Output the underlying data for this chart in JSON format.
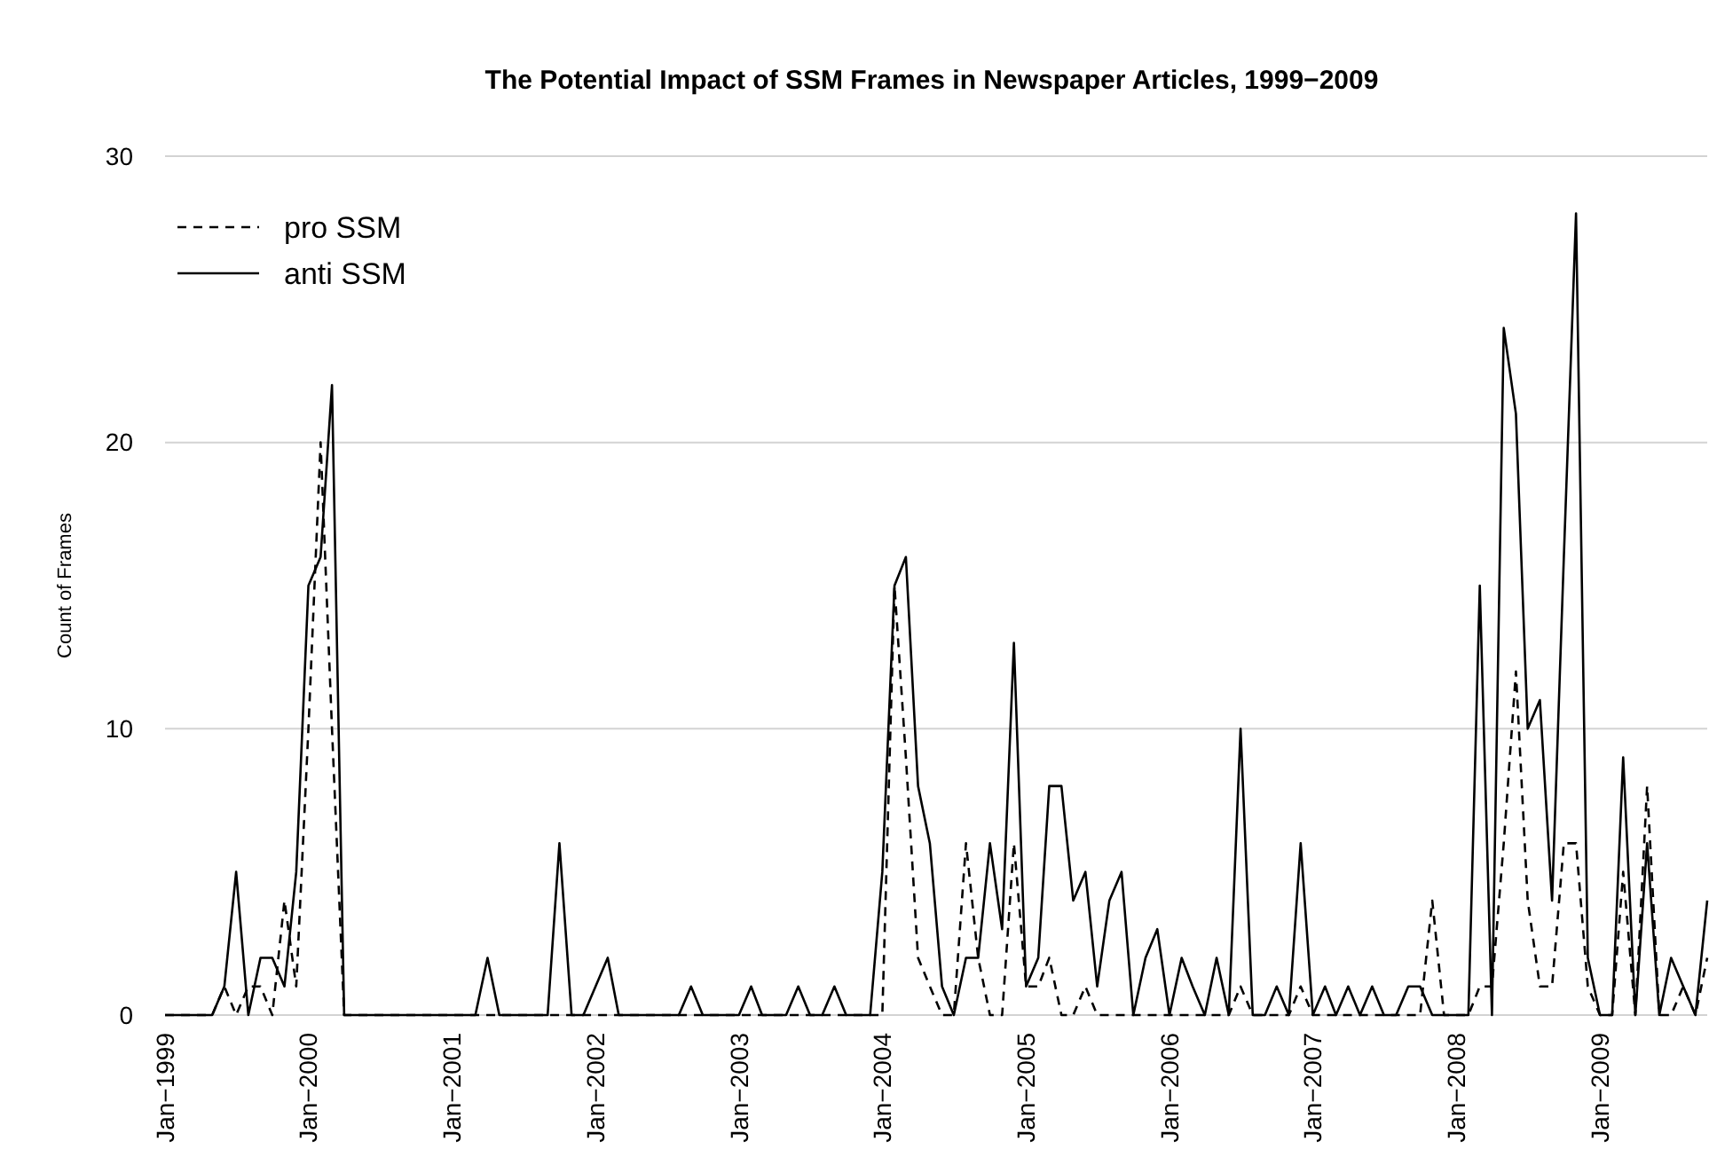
{
  "chart_data": {
    "type": "line",
    "title": "The Potential Impact of SSM Frames in Newspaper Articles, 1999−2009",
    "ylabel": "Count of Frames",
    "x": [
      "1999-01",
      "1999-02",
      "1999-03",
      "1999-04",
      "1999-05",
      "1999-06",
      "1999-07",
      "1999-08",
      "1999-09",
      "1999-10",
      "1999-11",
      "1999-12",
      "2000-01",
      "2000-02",
      "2000-03",
      "2000-04",
      "2000-05",
      "2000-06",
      "2000-07",
      "2000-08",
      "2000-09",
      "2000-10",
      "2000-11",
      "2000-12",
      "2001-01",
      "2001-02",
      "2001-03",
      "2001-04",
      "2001-05",
      "2001-06",
      "2001-07",
      "2001-08",
      "2001-09",
      "2001-10",
      "2001-11",
      "2001-12",
      "2002-01",
      "2002-02",
      "2002-03",
      "2002-04",
      "2002-05",
      "2002-06",
      "2002-07",
      "2002-08",
      "2002-09",
      "2002-10",
      "2002-11",
      "2002-12",
      "2003-01",
      "2003-02",
      "2003-03",
      "2003-04",
      "2003-05",
      "2003-06",
      "2003-07",
      "2003-08",
      "2003-09",
      "2003-10",
      "2003-11",
      "2003-12",
      "2004-01",
      "2004-02",
      "2004-03",
      "2004-04",
      "2004-05",
      "2004-06",
      "2004-07",
      "2004-08",
      "2004-09",
      "2004-10",
      "2004-11",
      "2004-12",
      "2005-01",
      "2005-02",
      "2005-03",
      "2005-04",
      "2005-05",
      "2005-06",
      "2005-07",
      "2005-08",
      "2005-09",
      "2005-10",
      "2005-11",
      "2005-12",
      "2006-01",
      "2006-02",
      "2006-03",
      "2006-04",
      "2006-05",
      "2006-06",
      "2006-07",
      "2006-08",
      "2006-09",
      "2006-10",
      "2006-11",
      "2006-12",
      "2007-01",
      "2007-02",
      "2007-03",
      "2007-04",
      "2007-05",
      "2007-06",
      "2007-07",
      "2007-08",
      "2007-09",
      "2007-10",
      "2007-11",
      "2007-12",
      "2008-01",
      "2008-02",
      "2008-03",
      "2008-04",
      "2008-05",
      "2008-06",
      "2008-07",
      "2008-08",
      "2008-09",
      "2008-10",
      "2008-11",
      "2008-12",
      "2009-01",
      "2009-02",
      "2009-03",
      "2009-04",
      "2009-05",
      "2009-06",
      "2009-07",
      "2009-08",
      "2009-09",
      "2009-10"
    ],
    "series": [
      {
        "name": "pro SSM",
        "color": "#000000",
        "line_style": "dashed",
        "values": [
          0,
          0,
          0,
          0,
          0,
          1,
          0,
          1,
          1,
          0,
          4,
          1,
          10,
          20,
          10,
          0,
          0,
          0,
          0,
          0,
          0,
          0,
          0,
          0,
          0,
          0,
          0,
          0,
          0,
          0,
          0,
          0,
          0,
          0,
          0,
          0,
          0,
          0,
          0,
          0,
          0,
          0,
          0,
          0,
          0,
          0,
          0,
          0,
          0,
          0,
          0,
          0,
          0,
          0,
          0,
          0,
          0,
          0,
          0,
          0,
          0,
          15,
          9,
          2,
          1,
          0,
          0,
          6,
          2,
          0,
          0,
          6,
          1,
          1,
          2,
          0,
          0,
          1,
          0,
          0,
          0,
          0,
          0,
          0,
          0,
          0,
          0,
          0,
          0,
          0,
          1,
          0,
          0,
          0,
          0,
          1,
          0,
          0,
          0,
          0,
          0,
          0,
          0,
          0,
          0,
          0,
          4,
          0,
          0,
          0,
          1,
          1,
          6,
          12,
          4,
          1,
          1,
          6,
          6,
          1,
          0,
          0,
          5,
          0,
          8,
          0,
          0,
          1,
          0,
          2
        ]
      },
      {
        "name": "anti SSM",
        "color": "#000000",
        "line_style": "solid",
        "values": [
          0,
          0,
          0,
          0,
          0,
          1,
          5,
          0,
          2,
          2,
          1,
          5,
          15,
          16,
          22,
          0,
          0,
          0,
          0,
          0,
          0,
          0,
          0,
          0,
          0,
          0,
          0,
          2,
          0,
          0,
          0,
          0,
          0,
          6,
          0,
          0,
          1,
          2,
          0,
          0,
          0,
          0,
          0,
          0,
          1,
          0,
          0,
          0,
          0,
          1,
          0,
          0,
          0,
          1,
          0,
          0,
          1,
          0,
          0,
          0,
          5,
          15,
          16,
          8,
          6,
          1,
          0,
          2,
          2,
          6,
          3,
          13,
          1,
          2,
          8,
          8,
          4,
          5,
          1,
          4,
          5,
          0,
          2,
          3,
          0,
          2,
          1,
          0,
          2,
          0,
          10,
          0,
          0,
          1,
          0,
          6,
          0,
          1,
          0,
          1,
          0,
          1,
          0,
          0,
          1,
          1,
          0,
          0,
          0,
          0,
          15,
          0,
          24,
          21,
          10,
          11,
          4,
          16,
          28,
          2,
          0,
          0,
          9,
          0,
          6,
          0,
          2,
          1,
          0,
          4
        ]
      }
    ],
    "xlim": [
      "1999-01",
      "2009-10"
    ],
    "ylim": [
      0,
      30
    ],
    "xticks": [
      {
        "value": "1999-01",
        "label": "Jan−1999"
      },
      {
        "value": "2000-01",
        "label": "Jan−2000"
      },
      {
        "value": "2001-01",
        "label": "Jan−2001"
      },
      {
        "value": "2002-01",
        "label": "Jan−2002"
      },
      {
        "value": "2003-01",
        "label": "Jan−2003"
      },
      {
        "value": "2004-01",
        "label": "Jan−2004"
      },
      {
        "value": "2005-01",
        "label": "Jan−2005"
      },
      {
        "value": "2006-01",
        "label": "Jan−2006"
      },
      {
        "value": "2007-01",
        "label": "Jan−2007"
      },
      {
        "value": "2008-01",
        "label": "Jan−2008"
      },
      {
        "value": "2009-01",
        "label": "Jan−2009"
      }
    ],
    "yticks": [
      0,
      10,
      20,
      30
    ],
    "grid": "y",
    "legend": "top left"
  }
}
